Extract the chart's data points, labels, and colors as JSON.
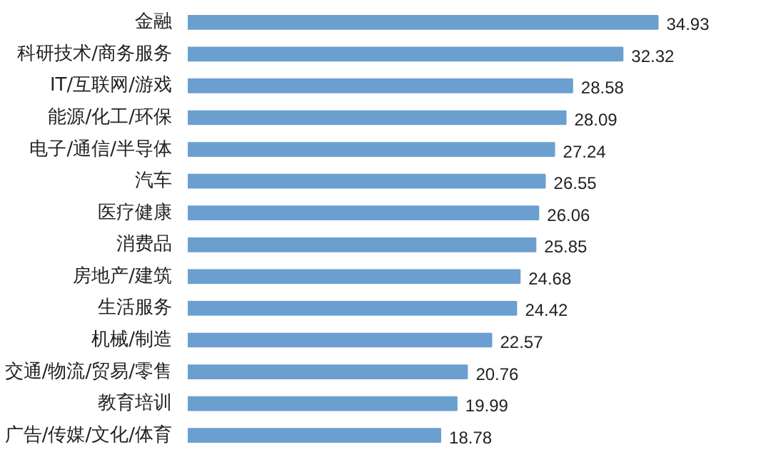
{
  "chart_data": {
    "type": "bar",
    "orientation": "horizontal",
    "categories": [
      "金融",
      "科研技术/商务服务",
      "IT/互联网/游戏",
      "能源/化工/环保",
      "电子/通信/半导体",
      "汽车",
      "医疗健康",
      "消费品",
      "房地产/建筑",
      "生活服务",
      "机械/制造",
      "交通/物流/贸易/零售",
      "教育培训",
      "广告/传媒/文化/体育"
    ],
    "values": [
      34.93,
      32.32,
      28.58,
      28.09,
      27.24,
      26.55,
      26.06,
      25.85,
      24.68,
      24.42,
      22.57,
      20.76,
      19.99,
      18.78
    ],
    "color": "#6b9fcf",
    "data_labels": true,
    "tick_labels": "y",
    "grid": false
  }
}
